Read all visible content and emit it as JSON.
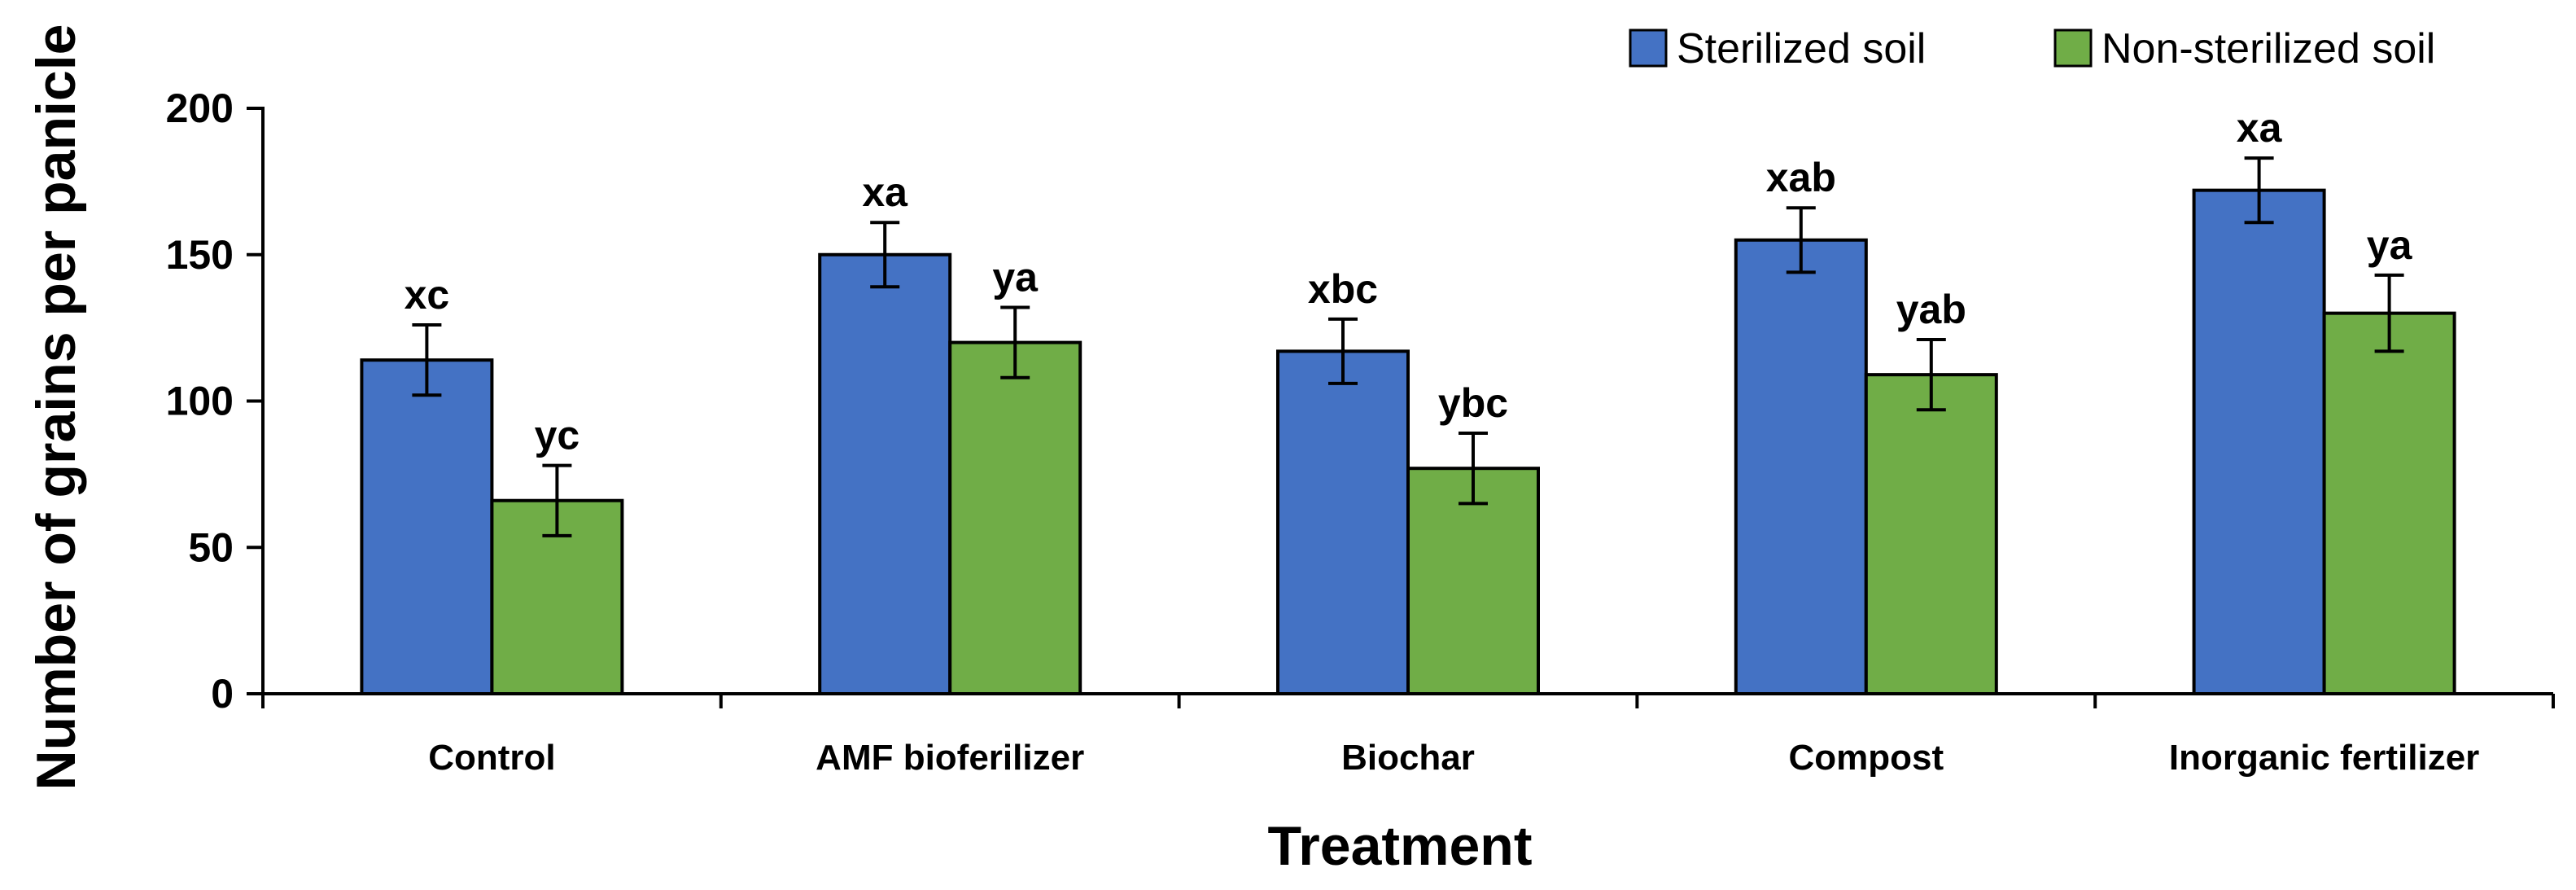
{
  "chart_data": {
    "type": "bar",
    "title": "",
    "xlabel": "Treatment",
    "ylabel": "Number of grains per panicle",
    "ylim": [
      0,
      200
    ],
    "yticks": [
      0,
      50,
      100,
      150,
      200
    ],
    "categories": [
      "Control",
      "AMF bioferilizer",
      "Biochar",
      "Compost",
      "Inorganic fertilizer"
    ],
    "series": [
      {
        "name": "Sterilized soil",
        "color": "#4472C4",
        "values": [
          114,
          150,
          117,
          155,
          172
        ],
        "errors": [
          12,
          11,
          11,
          11,
          11
        ],
        "labels": [
          "xc",
          "xa",
          "xbc",
          "xab",
          "xa"
        ]
      },
      {
        "name": "Non-sterilized soil",
        "color": "#70AD47",
        "values": [
          66,
          120,
          77,
          109,
          130
        ],
        "errors": [
          12,
          12,
          12,
          12,
          13
        ],
        "labels": [
          "yc",
          "ya",
          "ybc",
          "yab",
          "ya"
        ]
      }
    ],
    "legend_position": "top-right",
    "grid": false
  }
}
